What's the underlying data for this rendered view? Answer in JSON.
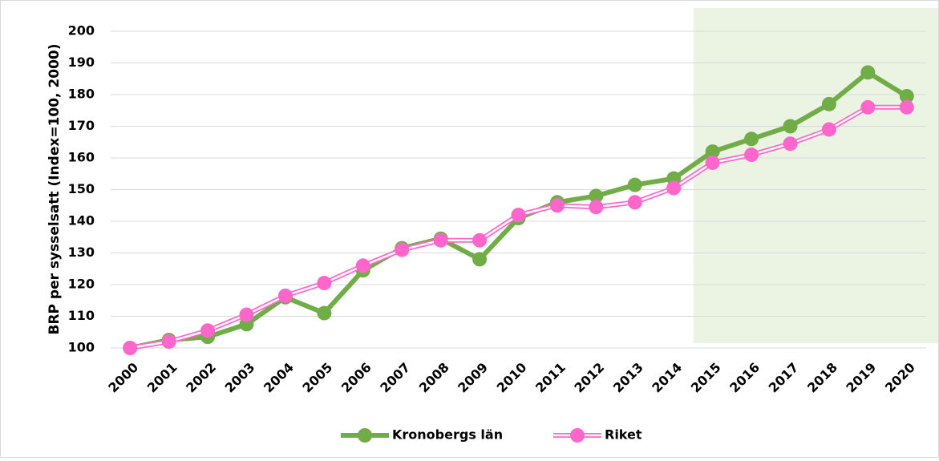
{
  "chart_data": {
    "type": "line",
    "y_label": "BRP per sysselsatt (Index=100, 2000)",
    "categories": [
      "2000",
      "2001",
      "2002",
      "2003",
      "2004",
      "2005",
      "2006",
      "2007",
      "2008",
      "2009",
      "2010",
      "2011",
      "2012",
      "2013",
      "2014",
      "2015",
      "2016",
      "2017",
      "2018",
      "2019",
      "2020"
    ],
    "series": [
      {
        "name": "Kronobergs län",
        "color": "#70ad47",
        "values": [
          100,
          102.5,
          103.5,
          107.5,
          116,
          111,
          124.5,
          131.5,
          134.5,
          128,
          141,
          146,
          148,
          151.5,
          153.5,
          162,
          166,
          170,
          177,
          187,
          179.5
        ]
      },
      {
        "name": "Riket",
        "color": "#ff66cc",
        "values": [
          100,
          102,
          105.5,
          110.5,
          116.5,
          120.5,
          126,
          131,
          134,
          134,
          142,
          145,
          144.5,
          146,
          150.5,
          158.5,
          161,
          164.5,
          169,
          176,
          176
        ]
      }
    ],
    "ylim": [
      100,
      200
    ],
    "yticks": [
      100,
      110,
      120,
      130,
      140,
      150,
      160,
      170,
      180,
      190,
      200
    ],
    "grid": true,
    "legend": "bottom"
  }
}
